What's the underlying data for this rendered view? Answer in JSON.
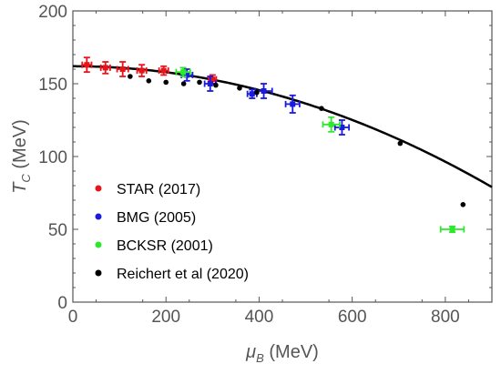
{
  "chart_data": {
    "type": "scatter",
    "title": "",
    "xlabel": {
      "symbol": "μ",
      "sub": "B",
      "unit": " (MeV)"
    },
    "ylabel": {
      "symbol": "T",
      "sub": "C",
      "unit": " (MeV)"
    },
    "xlim": [
      0,
      900
    ],
    "ylim": [
      0,
      200
    ],
    "xticks": [
      0,
      200,
      400,
      600,
      800
    ],
    "yticks": [
      0,
      50,
      100,
      150,
      200
    ],
    "grid": false,
    "legend_position": "lower-left",
    "curve": {
      "description_label": "",
      "Tc0": 162,
      "mu_end": 900,
      "Tc_end": 79
    },
    "series": [
      {
        "name": "STAR (2017)",
        "color": "#e8141b",
        "marker": "square-errorbar",
        "points": [
          {
            "x": 30,
            "y": 163,
            "xerr": 10,
            "yerr": 5
          },
          {
            "x": 70,
            "y": 161,
            "xerr": 10,
            "yerr": 4
          },
          {
            "x": 107,
            "y": 160,
            "xerr": 12,
            "yerr": 5
          },
          {
            "x": 148,
            "y": 159,
            "xerr": 10,
            "yerr": 4
          },
          {
            "x": 195,
            "y": 159,
            "xerr": 10,
            "yerr": 3
          },
          {
            "x": 300,
            "y": 153,
            "xerr": 8,
            "yerr": 3
          }
        ]
      },
      {
        "name": "BMG (2005)",
        "color": "#1a1ae0",
        "marker": "square-errorbar",
        "points": [
          {
            "x": 245,
            "y": 156,
            "xerr": 12,
            "yerr": 4
          },
          {
            "x": 295,
            "y": 150,
            "xerr": 12,
            "yerr": 5
          },
          {
            "x": 385,
            "y": 143,
            "xerr": 10,
            "yerr": 3
          },
          {
            "x": 410,
            "y": 145,
            "xerr": 18,
            "yerr": 5
          },
          {
            "x": 472,
            "y": 136,
            "xerr": 15,
            "yerr": 6
          },
          {
            "x": 578,
            "y": 120,
            "xerr": 15,
            "yerr": 5
          }
        ]
      },
      {
        "name": "BCKSR (2001)",
        "color": "#2ee82e",
        "marker": "square-errorbar",
        "points": [
          {
            "x": 237,
            "y": 158,
            "xerr": 15,
            "yerr": 3
          },
          {
            "x": 555,
            "y": 122,
            "xerr": 18,
            "yerr": 5
          },
          {
            "x": 815,
            "y": 50,
            "xerr": 25,
            "yerr": 2
          }
        ]
      },
      {
        "name": "Reichert et al (2020)",
        "color": "#000000",
        "marker": "dot",
        "points": [
          {
            "x": 123,
            "y": 155
          },
          {
            "x": 163,
            "y": 152
          },
          {
            "x": 200,
            "y": 151
          },
          {
            "x": 238,
            "y": 150
          },
          {
            "x": 272,
            "y": 151
          },
          {
            "x": 307,
            "y": 149
          },
          {
            "x": 358,
            "y": 147
          },
          {
            "x": 395,
            "y": 144
          },
          {
            "x": 534,
            "y": 133
          },
          {
            "x": 703,
            "y": 109
          },
          {
            "x": 838,
            "y": 67
          }
        ]
      }
    ]
  }
}
